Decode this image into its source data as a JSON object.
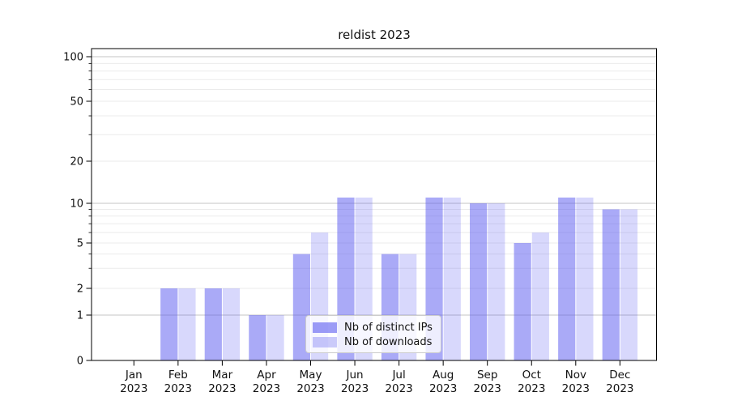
{
  "title": "reldist 2023",
  "chart_data": {
    "type": "bar",
    "title": "reldist 2023",
    "categories": [
      "Jan",
      "Feb",
      "Mar",
      "Apr",
      "May",
      "Jun",
      "Jul",
      "Aug",
      "Sep",
      "Oct",
      "Nov",
      "Dec"
    ],
    "category_year": "2023",
    "series": [
      {
        "name": "Nb of distinct IPs",
        "color": "#5555f0",
        "alpha": 0.5,
        "values": [
          0,
          2,
          2,
          1,
          4,
          11,
          4,
          11,
          10,
          5,
          11,
          9
        ]
      },
      {
        "name": "Nb of downloads",
        "color": "#5555f0",
        "alpha": 0.23,
        "values": [
          0,
          2,
          2,
          1,
          6,
          11,
          4,
          11,
          10,
          6,
          11,
          9
        ]
      }
    ],
    "yticks": [
      100,
      50,
      20,
      10,
      5,
      2,
      1,
      0
    ],
    "yscale": "log",
    "ylim": [
      0,
      105
    ],
    "grid": true,
    "legend_position": "lower center"
  },
  "colors": {
    "bar_base": "#5555f0",
    "grid_major": "#c4c4c4",
    "grid_minor": "#ebebeb",
    "axis": "#000000",
    "background": "#ffffff"
  }
}
